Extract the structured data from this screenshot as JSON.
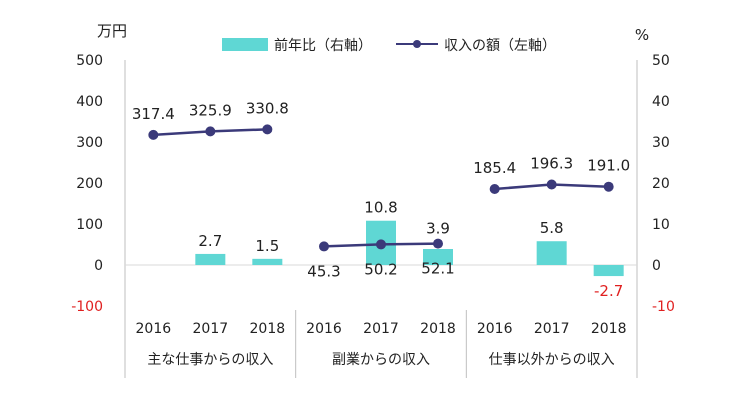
{
  "chart_data": {
    "type": "bar+line",
    "left_axis": {
      "unit": "万円",
      "min": -100,
      "max": 500,
      "ticks": [
        -100,
        0,
        100,
        200,
        300,
        400,
        500
      ]
    },
    "right_axis": {
      "unit": "%",
      "min": -10,
      "max": 50,
      "ticks": [
        -10,
        0,
        10,
        20,
        30,
        40,
        50
      ]
    },
    "negative_tick_color": "#e02020",
    "bar_color": "#5fd7d4",
    "line_color": "#3b3a7a",
    "legend": {
      "placement": "top",
      "bar_label": "前年比（右軸）",
      "line_label": "収入の額（左軸）"
    },
    "groups": [
      {
        "name": "主な仕事からの収入",
        "points": [
          {
            "year": "2016",
            "income": 317.4,
            "income_label": "317.4",
            "yoy": null,
            "yoy_label": ""
          },
          {
            "year": "2017",
            "income": 325.9,
            "income_label": "325.9",
            "yoy": 2.7,
            "yoy_label": "2.7"
          },
          {
            "year": "2018",
            "income": 330.8,
            "income_label": "330.8",
            "yoy": 1.5,
            "yoy_label": "1.5"
          }
        ]
      },
      {
        "name": "副業からの収入",
        "points": [
          {
            "year": "2016",
            "income": 45.3,
            "income_label": "45.3",
            "yoy": null,
            "yoy_label": ""
          },
          {
            "year": "2017",
            "income": 50.2,
            "income_label": "50.2",
            "yoy": 10.8,
            "yoy_label": "10.8"
          },
          {
            "year": "2018",
            "income": 52.1,
            "income_label": "52.1",
            "yoy": 3.9,
            "yoy_label": "3.9"
          }
        ]
      },
      {
        "name": "仕事以外からの収入",
        "points": [
          {
            "year": "2016",
            "income": 185.4,
            "income_label": "185.4",
            "yoy": null,
            "yoy_label": ""
          },
          {
            "year": "2017",
            "income": 196.3,
            "income_label": "196.3",
            "yoy": 5.8,
            "yoy_label": "5.8"
          },
          {
            "year": "2018",
            "income": 191.0,
            "income_label": "191.0",
            "yoy": -2.7,
            "yoy_label": "-2.7"
          }
        ]
      }
    ]
  }
}
